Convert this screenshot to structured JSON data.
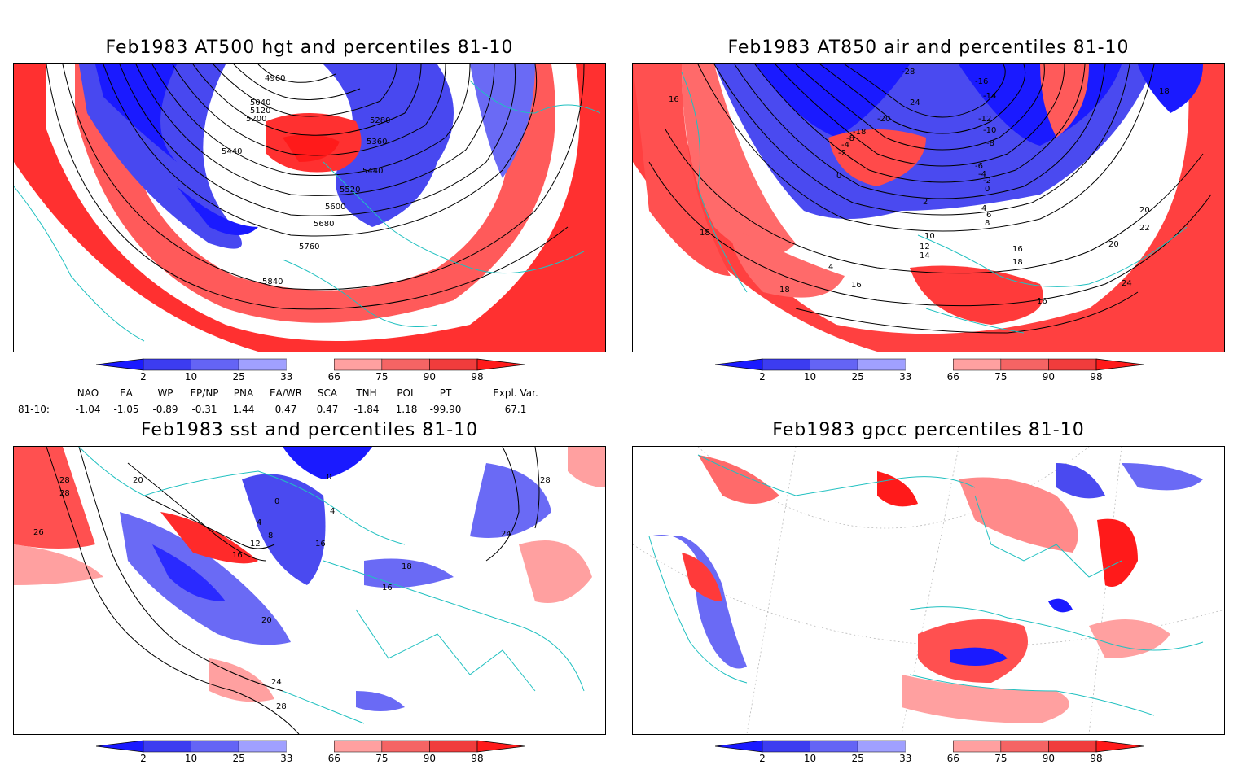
{
  "panels": [
    {
      "title": "Feb1983 AT500 hgt and percentiles 81-10",
      "contour_labels": [
        "4960",
        "5040",
        "5120",
        "5200",
        "5280",
        "5360",
        "5440",
        "5440",
        "5520",
        "5600",
        "5680",
        "5760",
        "5840"
      ]
    },
    {
      "title": "Feb1983 AT850 air and percentiles 81-10",
      "contour_labels": [
        "-28",
        "-16",
        "-14",
        "-12",
        "-10",
        "-8",
        "-6",
        "-4",
        "-2",
        "0",
        "2",
        "4",
        "6",
        "8",
        "10",
        "12",
        "14",
        "16",
        "18",
        "20",
        "22",
        "24",
        "-20",
        "-18",
        "-8",
        "-4",
        "-2",
        "0",
        "4",
        "16",
        "16",
        "18",
        "18",
        "18",
        "16",
        "20",
        "24"
      ]
    },
    {
      "title": "Feb1983 sst and percentiles 81-10",
      "contour_labels": [
        "28",
        "28",
        "26",
        "20",
        "0",
        "0",
        "4",
        "4",
        "8",
        "12",
        "16",
        "16",
        "16",
        "18",
        "20",
        "24",
        "24",
        "28",
        "28"
      ]
    },
    {
      "title": "Feb1983 gpcc percentiles 81-10",
      "contour_labels": []
    }
  ],
  "colorbar": {
    "labels": [
      "2",
      "10",
      "25",
      "33",
      "66",
      "75",
      "90",
      "98"
    ],
    "colors": [
      "#1a1aff",
      "#3c3cf0",
      "#6464f5",
      "#a0a0ff",
      "#ffffff",
      "#ffa0a0",
      "#f56464",
      "#f03c3c",
      "#ff1a1a"
    ]
  },
  "teleconnections": {
    "row_label": "81-10:",
    "headers": [
      "NAO",
      "EA",
      "WP",
      "EP/NP",
      "PNA",
      "EA/WR",
      "SCA",
      "TNH",
      "POL",
      "PT",
      "Expl. Var."
    ],
    "values": [
      "-1.04",
      "-1.05",
      "-0.89",
      "-0.31",
      "1.44",
      "0.47",
      "0.47",
      "-1.84",
      "1.18",
      "-99.90",
      "67.1"
    ]
  },
  "palette": {
    "blue_strong": "#1a1aff",
    "blue_mid": "#4a4af2",
    "blue_light": "#a0a0ff",
    "red_light": "#ffa0a0",
    "red_mid": "#f56464",
    "red_strong": "#ff2a2a",
    "coast": "#20c0c0"
  }
}
